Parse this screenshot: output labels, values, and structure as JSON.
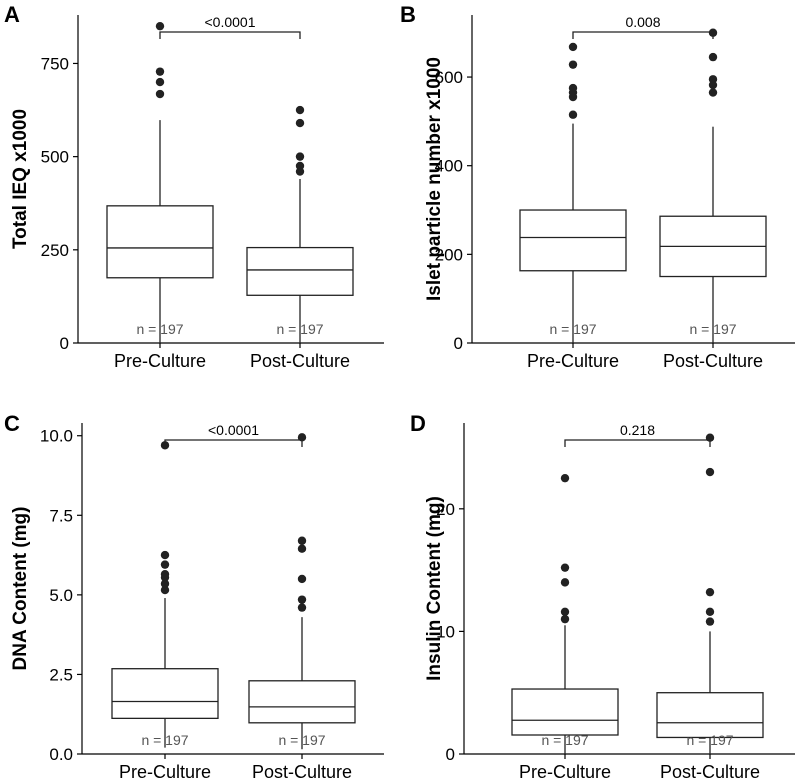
{
  "chart_data": [
    {
      "panel": "A",
      "type": "box",
      "ylabel": "Total IEQ x1000",
      "ylim": [
        0,
        880
      ],
      "yticks": [
        0,
        250,
        500,
        750
      ],
      "categories": [
        "Pre-Culture",
        "Post-Culture"
      ],
      "boxes": [
        {
          "q1": 175,
          "median": 255,
          "q3": 368,
          "whisker_low": 0,
          "whisker_high": 598,
          "outliers": [
            668,
            700,
            728,
            850
          ],
          "n_label": "n = 197"
        },
        {
          "q1": 128,
          "median": 196,
          "q3": 256,
          "whisker_low": 0,
          "whisker_high": 440,
          "outliers": [
            460,
            475,
            500,
            590,
            625
          ],
          "n_label": "n = 197"
        }
      ],
      "pvalue": "<0.0001",
      "bracket_y": 892
    },
    {
      "panel": "B",
      "type": "box",
      "ylabel": "Islet particle number x1000",
      "ylim": [
        0,
        740
      ],
      "yticks": [
        0,
        200,
        400,
        600
      ],
      "categories": [
        "Pre-Culture",
        "Post-Culture"
      ],
      "boxes": [
        {
          "q1": 163,
          "median": 238,
          "q3": 300,
          "whisker_low": 0,
          "whisker_high": 495,
          "outliers": [
            515,
            555,
            565,
            575,
            628,
            668
          ],
          "n_label": "n = 197"
        },
        {
          "q1": 150,
          "median": 218,
          "q3": 286,
          "whisker_low": 0,
          "whisker_high": 488,
          "outliers": [
            565,
            582,
            595,
            645,
            700
          ],
          "n_label": "n = 197"
        }
      ],
      "pvalue": "0.008",
      "bracket_y": 732
    },
    {
      "panel": "C",
      "type": "box",
      "ylabel": "DNA Content (mg)",
      "ylim": [
        0,
        10.4
      ],
      "yticks": [
        0.0,
        2.5,
        5.0,
        7.5,
        10.0
      ],
      "tick_labels": [
        "0.0",
        "2.5",
        "5.0",
        "7.5",
        "10.0"
      ],
      "categories": [
        "Pre-Culture",
        "Post-Culture"
      ],
      "boxes": [
        {
          "q1": 1.12,
          "median": 1.65,
          "q3": 2.68,
          "whisker_low": 0.2,
          "whisker_high": 4.9,
          "outliers": [
            5.15,
            5.35,
            5.55,
            5.65,
            5.95,
            6.25,
            9.7
          ],
          "n_label": "n = 197"
        },
        {
          "q1": 0.98,
          "median": 1.48,
          "q3": 2.3,
          "whisker_low": 0.15,
          "whisker_high": 4.3,
          "outliers": [
            4.6,
            4.85,
            5.5,
            6.45,
            6.7,
            9.95
          ],
          "n_label": "n = 197"
        }
      ],
      "pvalue": "<0.0001",
      "bracket_y": 10.45
    },
    {
      "panel": "D",
      "type": "box",
      "ylabel": "Insulin Content (mg)",
      "ylim": [
        0,
        27
      ],
      "yticks": [
        0,
        10,
        20
      ],
      "categories": [
        "Pre-Culture",
        "Post-Culture"
      ],
      "boxes": [
        {
          "q1": 1.55,
          "median": 2.75,
          "q3": 5.3,
          "whisker_low": 0,
          "whisker_high": 10.5,
          "outliers": [
            11.0,
            11.6,
            14.0,
            15.2,
            22.5
          ],
          "n_label": "n = 197"
        },
        {
          "q1": 1.35,
          "median": 2.55,
          "q3": 5.0,
          "whisker_low": 0,
          "whisker_high": 10.0,
          "outliers": [
            10.8,
            11.6,
            13.2,
            23.0,
            25.8
          ],
          "n_label": "n = 197"
        }
      ],
      "pvalue": "0.218",
      "bracket_y": 27.3
    }
  ]
}
